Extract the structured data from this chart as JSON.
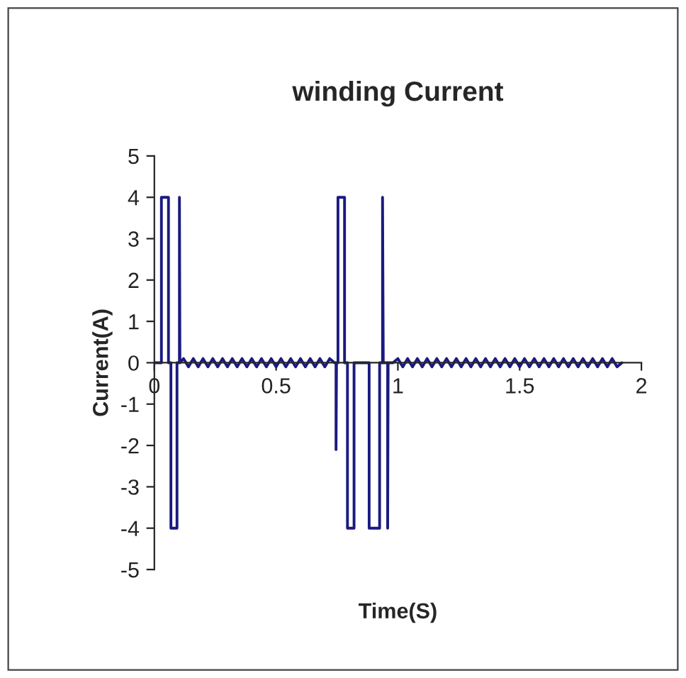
{
  "chart_data": {
    "type": "line",
    "title": "winding Current",
    "xlabel": "Time(S)",
    "ylabel": "Current(A)",
    "xlim": [
      0,
      2
    ],
    "ylim": [
      -5,
      5
    ],
    "xticks": [
      0,
      0.5,
      1,
      1.5,
      2
    ],
    "yticks": [
      -5,
      -4,
      -3,
      -2,
      -1,
      0,
      1,
      2,
      3,
      4,
      5
    ],
    "grid": false,
    "series": [
      {
        "color": "#1a1a80",
        "x": [
          0,
          0.029,
          0.029,
          0.058,
          0.058,
          0.068,
          0.068,
          0.093,
          0.093,
          0.103,
          0.103,
          0.105,
          0.12,
          0.14,
          0.16,
          0.18,
          0.2,
          0.22,
          0.24,
          0.26,
          0.28,
          0.3,
          0.32,
          0.34,
          0.36,
          0.38,
          0.4,
          0.42,
          0.44,
          0.46,
          0.48,
          0.5,
          0.52,
          0.54,
          0.56,
          0.58,
          0.6,
          0.62,
          0.64,
          0.66,
          0.68,
          0.7,
          0.72,
          0.74,
          0.746,
          0.746,
          0.748,
          0.754,
          0.754,
          0.781,
          0.781,
          0.793,
          0.793,
          0.82,
          0.82,
          0.882,
          0.882,
          0.925,
          0.925,
          0.937,
          0.937,
          0.94,
          0.958,
          0.958,
          0.96,
          0.98,
          1.0,
          1.02,
          1.04,
          1.06,
          1.08,
          1.1,
          1.12,
          1.14,
          1.16,
          1.18,
          1.2,
          1.22,
          1.24,
          1.26,
          1.28,
          1.3,
          1.32,
          1.34,
          1.36,
          1.38,
          1.4,
          1.42,
          1.44,
          1.46,
          1.48,
          1.5,
          1.52,
          1.54,
          1.56,
          1.58,
          1.6,
          1.62,
          1.64,
          1.66,
          1.68,
          1.7,
          1.72,
          1.74,
          1.76,
          1.78,
          1.8,
          1.82,
          1.84,
          1.86,
          1.88,
          1.9,
          1.92
        ],
        "values": [
          0,
          0,
          4,
          4,
          0,
          0,
          -4,
          -4,
          0,
          0,
          4,
          0,
          0.1,
          -0.1,
          0.1,
          -0.1,
          0.1,
          -0.1,
          0.1,
          -0.1,
          0.1,
          -0.1,
          0.1,
          -0.1,
          0.1,
          -0.1,
          0.1,
          -0.1,
          0.1,
          -0.1,
          0.1,
          -0.1,
          0.1,
          -0.1,
          0.1,
          -0.1,
          0.1,
          -0.1,
          0.1,
          -0.1,
          0.1,
          -0.1,
          0.1,
          0,
          0,
          -2.1,
          0,
          0,
          4,
          4,
          0,
          0,
          -4,
          -4,
          0,
          0,
          -4,
          -4,
          0,
          0,
          4,
          0,
          0,
          -4,
          0,
          0,
          0.1,
          -0.1,
          0.1,
          -0.1,
          0.1,
          -0.1,
          0.1,
          -0.1,
          0.1,
          -0.1,
          0.1,
          -0.1,
          0.1,
          -0.1,
          0.1,
          -0.1,
          0.1,
          -0.1,
          0.1,
          -0.1,
          0.1,
          -0.1,
          0.1,
          -0.1,
          0.1,
          -0.1,
          0.1,
          -0.1,
          0.1,
          -0.1,
          0.1,
          -0.1,
          0.1,
          -0.1,
          0.1,
          -0.1,
          0.1,
          -0.1,
          0.1,
          -0.1,
          0.1,
          -0.1,
          0.1,
          -0.1,
          0.1,
          -0.1,
          0
        ]
      }
    ]
  }
}
